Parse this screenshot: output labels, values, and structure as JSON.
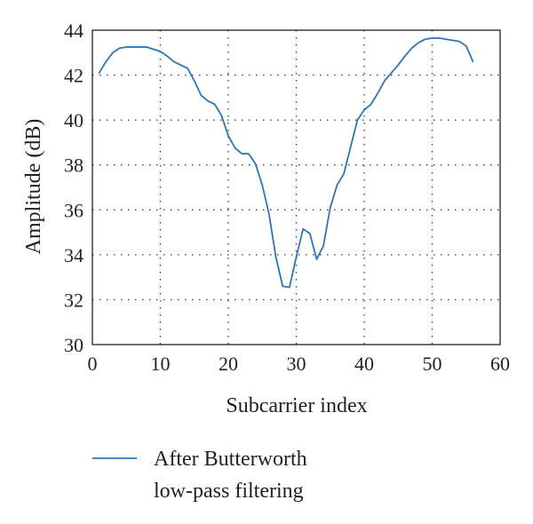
{
  "chart_data": {
    "type": "line",
    "title": "",
    "xlabel": "Subcarrier index",
    "ylabel": "Amplitude (dB)",
    "xlim": [
      0,
      60
    ],
    "ylim": [
      30,
      44
    ],
    "xticks": [
      0,
      10,
      20,
      30,
      40,
      50,
      60
    ],
    "yticks": [
      30,
      32,
      34,
      36,
      38,
      40,
      42,
      44
    ],
    "grid": true,
    "legend_position": "bottom",
    "series": [
      {
        "name": "After Butterworth low-pass filtering",
        "legend_lines": [
          "After Butterworth",
          "low-pass filtering"
        ],
        "color": "#2e75b6",
        "x": [
          1,
          2,
          3,
          4,
          5,
          6,
          7,
          8,
          9,
          10,
          11,
          12,
          13,
          14,
          15,
          16,
          17,
          18,
          19,
          20,
          21,
          22,
          23,
          24,
          25,
          26,
          27,
          28,
          29,
          30,
          31,
          32,
          33,
          34,
          35,
          36,
          37,
          38,
          39,
          40,
          41,
          42,
          43,
          44,
          45,
          46,
          47,
          48,
          49,
          50,
          51,
          52,
          53,
          54,
          55,
          56
        ],
        "y": [
          42.1,
          42.6,
          43.0,
          43.2,
          43.25,
          43.25,
          43.25,
          43.25,
          43.15,
          43.05,
          42.85,
          42.6,
          42.45,
          42.3,
          41.75,
          41.1,
          40.85,
          40.7,
          40.2,
          39.3,
          38.75,
          38.5,
          38.5,
          38.05,
          37.1,
          35.8,
          33.9,
          32.6,
          32.55,
          33.9,
          35.15,
          34.95,
          33.8,
          34.4,
          36.1,
          37.1,
          37.6,
          38.8,
          40.0,
          40.45,
          40.7,
          41.2,
          41.75,
          42.1,
          42.45,
          42.85,
          43.2,
          43.45,
          43.6,
          43.65,
          43.65,
          43.6,
          43.55,
          43.5,
          43.3,
          42.6
        ]
      }
    ]
  }
}
